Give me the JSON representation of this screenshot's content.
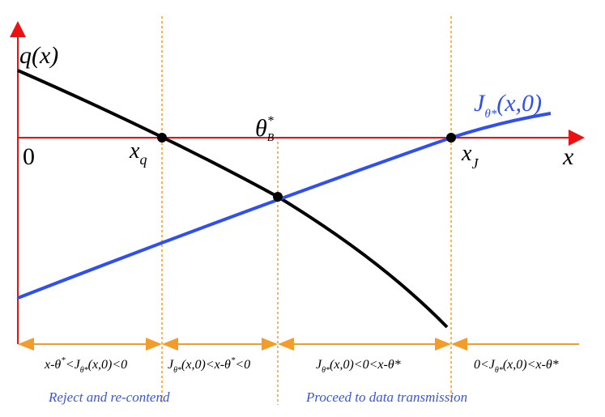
{
  "axis": {
    "origin": "0",
    "x": "x"
  },
  "curves": [
    {
      "label": "q(x)"
    },
    {
      "label": [
        "J",
        "θ*",
        "(x,0)"
      ]
    }
  ],
  "points": [
    {
      "label": [
        "x",
        "q"
      ]
    },
    {
      "label": [
        "θ",
        "*",
        "B"
      ]
    },
    {
      "label": [
        "x",
        "J"
      ]
    }
  ],
  "regions": [
    {
      "condition": [
        "x-θ",
        "*",
        "<J",
        "θ*",
        "(x,0)<0"
      ]
    },
    {
      "condition": [
        "J",
        "θ*",
        "(x,0)<x-θ",
        "*",
        "<0"
      ]
    },
    {
      "condition": [
        "J",
        "θ*",
        "(x,0)<0<x-θ*"
      ]
    },
    {
      "condition": [
        "0<J",
        "θ*",
        "(x,0)<x-θ*"
      ]
    }
  ],
  "actions": [
    "Reject and re-contend",
    "Proceed to data transmission"
  ]
}
